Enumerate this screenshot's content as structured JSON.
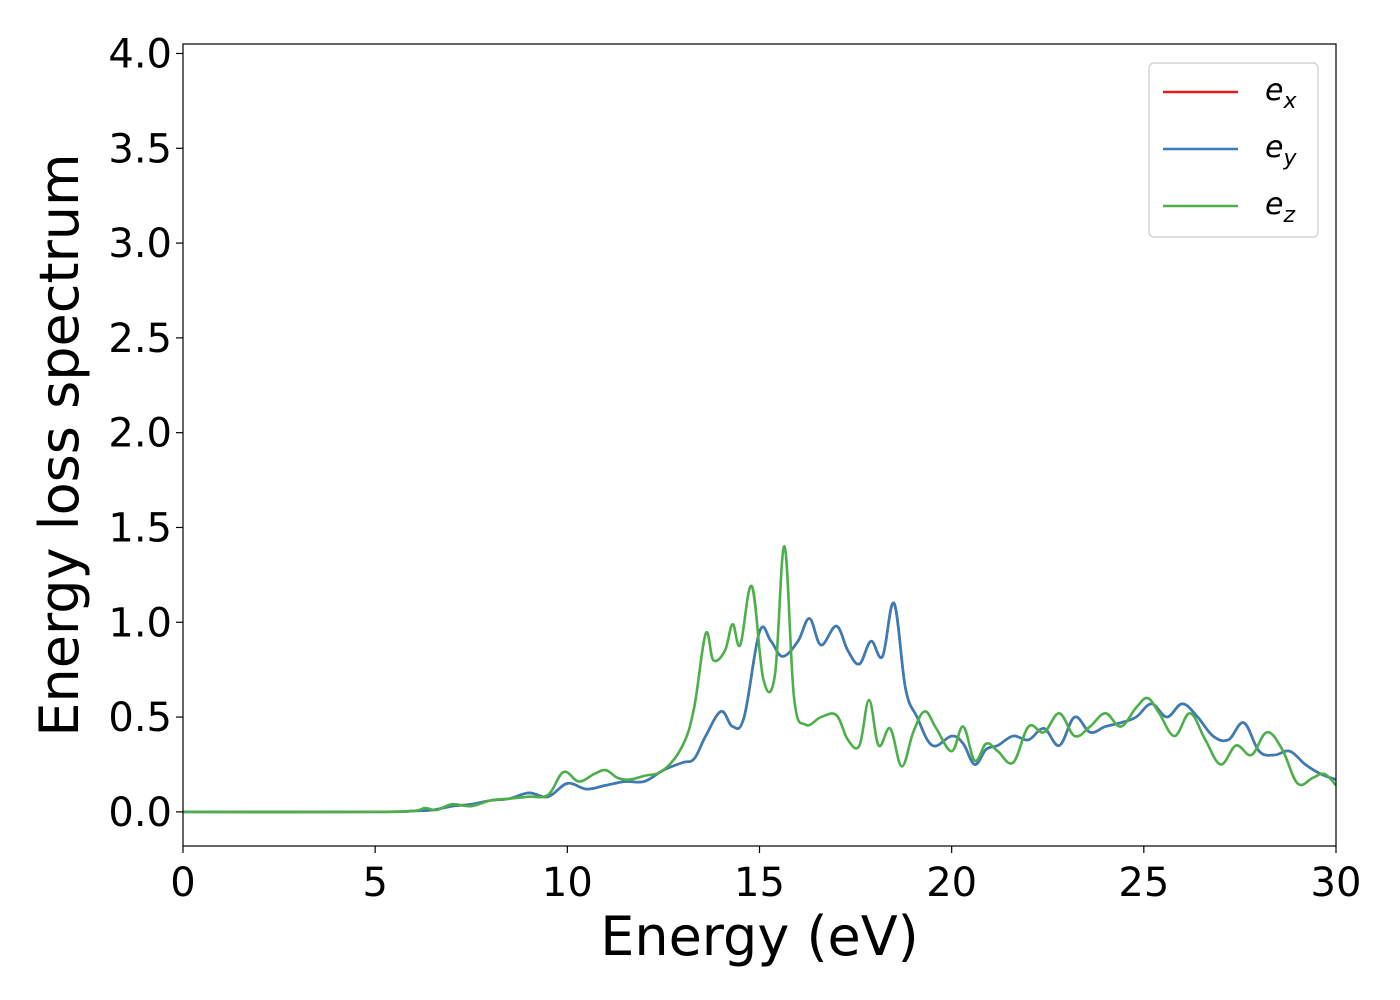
{
  "chart_data": {
    "type": "line",
    "xlabel": "Energy (eV)",
    "ylabel": "Energy loss spectrum",
    "xlim": [
      0,
      30
    ],
    "ylim": [
      -0.18,
      4.05
    ],
    "xticks": [
      "0",
      "5",
      "10",
      "15",
      "20",
      "25",
      "30"
    ],
    "yticks": [
      "0.0",
      "0.5",
      "1.0",
      "1.5",
      "2.0",
      "2.5",
      "3.0",
      "3.5",
      "4.0"
    ],
    "grid": false,
    "legend_position": "top-right",
    "series": [
      {
        "name": "e_x",
        "label_main": "e",
        "label_sub": "x",
        "color": "#e41a1c",
        "x": [
          0,
          5,
          6,
          6.5,
          7,
          7.5,
          8,
          8.5,
          9,
          9.5,
          10,
          10.5,
          11,
          11.5,
          12,
          12.5,
          13,
          13.3,
          13.6,
          14,
          14.3,
          14.6,
          15,
          15.3,
          15.6,
          16,
          16.3,
          16.6,
          17,
          17.3,
          17.6,
          17.9,
          18.2,
          18.5,
          18.8,
          19.1,
          19.5,
          20,
          20.3,
          20.6,
          20.9,
          21.2,
          21.6,
          22,
          22.4,
          22.8,
          23.2,
          23.6,
          24,
          24.4,
          24.8,
          25.2,
          25.6,
          26,
          26.4,
          26.8,
          27.2,
          27.6,
          28,
          28.4,
          28.8,
          29.2,
          29.6,
          30
        ],
        "values": [
          0,
          0,
          0.005,
          0.01,
          0.03,
          0.04,
          0.06,
          0.07,
          0.1,
          0.08,
          0.15,
          0.12,
          0.14,
          0.16,
          0.16,
          0.22,
          0.26,
          0.28,
          0.4,
          0.53,
          0.45,
          0.5,
          0.95,
          0.9,
          0.82,
          0.9,
          1.02,
          0.88,
          0.98,
          0.85,
          0.78,
          0.9,
          0.82,
          1.1,
          0.65,
          0.5,
          0.35,
          0.4,
          0.36,
          0.25,
          0.33,
          0.35,
          0.4,
          0.38,
          0.44,
          0.35,
          0.5,
          0.42,
          0.45,
          0.47,
          0.5,
          0.57,
          0.5,
          0.57,
          0.5,
          0.4,
          0.38,
          0.47,
          0.32,
          0.3,
          0.32,
          0.25,
          0.2,
          0.17
        ]
      },
      {
        "name": "e_y",
        "label_main": "e",
        "label_sub": "y",
        "color": "#377eb8",
        "x": [
          0,
          5,
          6,
          6.5,
          7,
          7.5,
          8,
          8.5,
          9,
          9.5,
          10,
          10.5,
          11,
          11.5,
          12,
          12.5,
          13,
          13.3,
          13.6,
          14,
          14.3,
          14.6,
          15,
          15.3,
          15.6,
          16,
          16.3,
          16.6,
          17,
          17.3,
          17.6,
          17.9,
          18.2,
          18.5,
          18.8,
          19.1,
          19.5,
          20,
          20.3,
          20.6,
          20.9,
          21.2,
          21.6,
          22,
          22.4,
          22.8,
          23.2,
          23.6,
          24,
          24.4,
          24.8,
          25.2,
          25.6,
          26,
          26.4,
          26.8,
          27.2,
          27.6,
          28,
          28.4,
          28.8,
          29.2,
          29.6,
          30
        ],
        "values": [
          0,
          0,
          0.005,
          0.01,
          0.03,
          0.04,
          0.06,
          0.07,
          0.1,
          0.08,
          0.15,
          0.12,
          0.14,
          0.16,
          0.16,
          0.22,
          0.26,
          0.28,
          0.4,
          0.53,
          0.45,
          0.5,
          0.95,
          0.9,
          0.82,
          0.9,
          1.02,
          0.88,
          0.98,
          0.85,
          0.78,
          0.9,
          0.82,
          1.1,
          0.65,
          0.5,
          0.35,
          0.4,
          0.36,
          0.25,
          0.33,
          0.35,
          0.4,
          0.38,
          0.44,
          0.35,
          0.5,
          0.42,
          0.45,
          0.47,
          0.5,
          0.57,
          0.5,
          0.57,
          0.5,
          0.4,
          0.38,
          0.47,
          0.32,
          0.3,
          0.32,
          0.25,
          0.2,
          0.17
        ]
      },
      {
        "name": "e_z",
        "label_main": "e",
        "label_sub": "z",
        "color": "#4daf4a",
        "x": [
          0,
          5,
          6,
          6.3,
          6.6,
          7,
          7.5,
          8,
          8.5,
          9,
          9.5,
          9.9,
          10.3,
          10.7,
          11,
          11.3,
          11.6,
          12,
          12.5,
          13,
          13.3,
          13.6,
          13.8,
          14.1,
          14.3,
          14.5,
          14.8,
          15.1,
          15.4,
          15.65,
          15.9,
          16.2,
          16.6,
          17,
          17.3,
          17.6,
          17.85,
          18.1,
          18.4,
          18.7,
          19,
          19.3,
          19.6,
          20,
          20.3,
          20.6,
          20.9,
          21.2,
          21.6,
          22,
          22.4,
          22.8,
          23.2,
          23.6,
          24,
          24.4,
          24.8,
          25.1,
          25.4,
          25.8,
          26.2,
          26.6,
          27,
          27.4,
          27.8,
          28.2,
          28.6,
          29,
          29.4,
          29.7,
          30
        ],
        "values": [
          0,
          0,
          0.005,
          0.02,
          0.01,
          0.04,
          0.03,
          0.06,
          0.07,
          0.08,
          0.09,
          0.21,
          0.16,
          0.2,
          0.22,
          0.18,
          0.17,
          0.19,
          0.22,
          0.35,
          0.55,
          0.94,
          0.8,
          0.85,
          0.99,
          0.88,
          1.19,
          0.7,
          0.72,
          1.4,
          0.6,
          0.46,
          0.5,
          0.51,
          0.38,
          0.35,
          0.59,
          0.35,
          0.44,
          0.24,
          0.42,
          0.53,
          0.44,
          0.32,
          0.45,
          0.27,
          0.36,
          0.32,
          0.26,
          0.45,
          0.42,
          0.52,
          0.4,
          0.45,
          0.52,
          0.45,
          0.55,
          0.6,
          0.52,
          0.4,
          0.52,
          0.38,
          0.25,
          0.35,
          0.3,
          0.42,
          0.33,
          0.15,
          0.18,
          0.2,
          0.14
        ]
      }
    ]
  }
}
